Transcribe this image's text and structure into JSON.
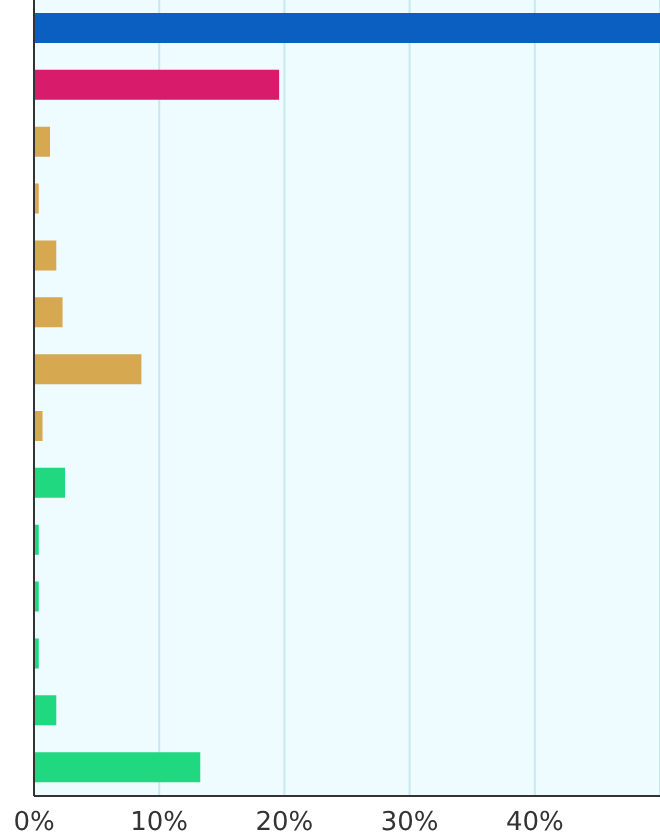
{
  "chart_data": {
    "type": "bar",
    "orientation": "horizontal",
    "categories": [
      null,
      null,
      null,
      null,
      null,
      null,
      null,
      null,
      null,
      null,
      null,
      null,
      null,
      null
    ],
    "values": [
      50,
      19.5,
      1.2,
      0.3,
      1.7,
      2.2,
      8.5,
      0.6,
      2.4,
      0.3,
      0.3,
      0.3,
      1.7,
      13.2
    ],
    "colors": [
      "#0a5fc0",
      "#d81b6a",
      "#d6a850",
      "#d6a850",
      "#d6a850",
      "#d6a850",
      "#d6a850",
      "#d6a850",
      "#20d880",
      "#20d880",
      "#20d880",
      "#20d880",
      "#20d880",
      "#20d880"
    ],
    "xlim": [
      0,
      50
    ],
    "xticks": [
      {
        "value": 0,
        "label": "0%"
      },
      {
        "value": 10,
        "label": "10%"
      },
      {
        "value": 20,
        "label": "20%"
      },
      {
        "value": 30,
        "label": "30%"
      },
      {
        "value": 40,
        "label": "40%"
      }
    ],
    "grid": "x"
  }
}
